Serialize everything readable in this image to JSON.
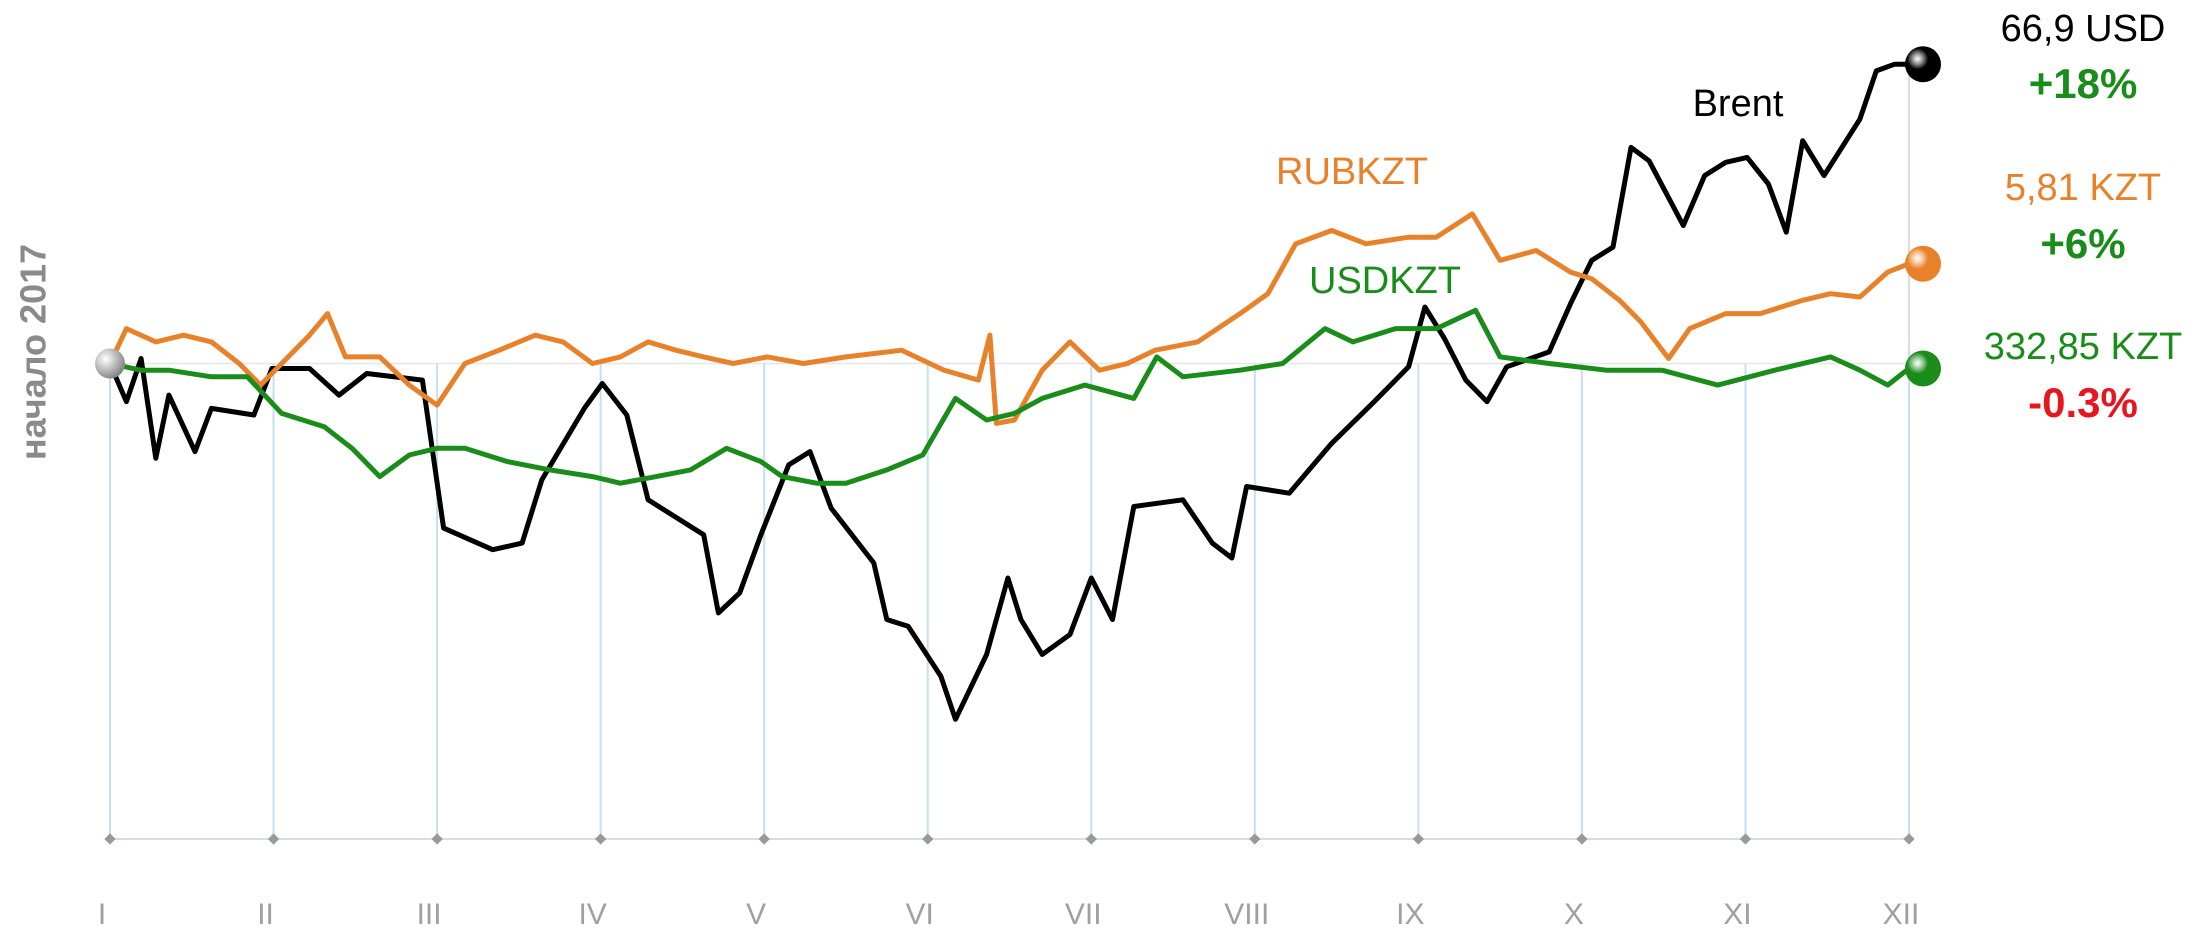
{
  "chart_data": {
    "type": "line",
    "ylabel": "начало 2017",
    "xlim": [
      0,
      11
    ],
    "ylim": [
      -28.6,
      20
    ],
    "xticks": [
      {
        "value": 0,
        "label": "I"
      },
      {
        "value": 1,
        "label": "II"
      },
      {
        "value": 2,
        "label": "III"
      },
      {
        "value": 3,
        "label": "IV"
      },
      {
        "value": 4,
        "label": "V"
      },
      {
        "value": 5,
        "label": "VI"
      },
      {
        "value": 6,
        "label": "VII"
      },
      {
        "value": 7,
        "label": "VIII"
      },
      {
        "value": 8,
        "label": "IX"
      },
      {
        "value": 9,
        "label": "X"
      },
      {
        "value": 10,
        "label": "XI"
      },
      {
        "value": 11,
        "label": "XII"
      }
    ],
    "grid": true,
    "series": [
      {
        "name": "Brent",
        "color": "#000000",
        "price_label": "66,9 USD",
        "change_label": "+18%",
        "change_color": "#1a8c1a",
        "x": [
          0,
          0.1,
          0.19,
          0.28,
          0.36,
          0.52,
          0.62,
          0.88,
          0.99,
          1.22,
          1.4,
          1.57,
          1.91,
          2.04,
          2.34,
          2.52,
          2.64,
          2.9,
          3.01,
          3.16,
          3.29,
          3.63,
          3.72,
          3.85,
          3.98,
          4.15,
          4.28,
          4.41,
          4.67,
          4.75,
          4.88,
          5.08,
          5.17,
          5.36,
          5.49,
          5.57,
          5.7,
          5.87,
          6.0,
          6.13,
          6.26,
          6.56,
          6.74,
          6.86,
          6.95,
          7.21,
          7.47,
          7.73,
          7.94,
          8.04,
          8.16,
          8.29,
          8.42,
          8.54,
          8.8,
          8.93,
          9.06,
          9.19,
          9.3,
          9.41,
          9.62,
          9.75,
          9.88,
          10.01,
          10.14,
          10.25,
          10.35,
          10.48,
          10.7,
          10.8,
          10.91,
          11.0
        ],
        "values": [
          0,
          -2.3,
          0.3,
          -5.7,
          -1.9,
          -5.3,
          -2.7,
          -3.1,
          -0.3,
          -0.3,
          -1.9,
          -0.6,
          -1.0,
          -9.9,
          -11.2,
          -10.8,
          -7.0,
          -2.7,
          -1.2,
          -3.1,
          -8.2,
          -10.3,
          -15.0,
          -13.8,
          -10.3,
          -6.1,
          -5.3,
          -8.7,
          -12.0,
          -15.4,
          -15.8,
          -18.8,
          -21.4,
          -17.5,
          -12.9,
          -15.4,
          -17.5,
          -16.3,
          -12.9,
          -15.4,
          -8.6,
          -8.2,
          -10.8,
          -11.7,
          -7.4,
          -7.8,
          -4.8,
          -2.3,
          -0.2,
          3.4,
          1.5,
          -1.0,
          -2.3,
          -0.2,
          0.7,
          3.6,
          6.2,
          7.0,
          13.0,
          12.2,
          8.3,
          11.3,
          12.1,
          12.4,
          10.8,
          7.9,
          13.4,
          11.3,
          14.7,
          17.6,
          18.0,
          18.0
        ]
      },
      {
        "name": "RUBKZT",
        "color": "#e8822a",
        "price_label": "5,81 KZT",
        "change_label": "+6%",
        "change_color": "#1a8c1a",
        "x": [
          0,
          0.1,
          0.28,
          0.45,
          0.62,
          0.79,
          0.92,
          1.05,
          1.22,
          1.33,
          1.44,
          1.65,
          1.83,
          2.0,
          2.17,
          2.38,
          2.6,
          2.77,
          2.95,
          3.12,
          3.29,
          3.46,
          3.63,
          3.81,
          4.02,
          4.24,
          4.5,
          4.84,
          5.1,
          5.31,
          5.38,
          5.42,
          5.53,
          5.7,
          5.87,
          6.05,
          6.22,
          6.39,
          6.65,
          6.91,
          7.08,
          7.25,
          7.47,
          7.68,
          7.94,
          8.11,
          8.33,
          8.5,
          8.72,
          8.93,
          9.06,
          9.23,
          9.36,
          9.53,
          9.66,
          9.88,
          10.09,
          10.35,
          10.52,
          10.7,
          10.87,
          11.0
        ],
        "values": [
          0,
          2.1,
          1.3,
          1.7,
          1.3,
          0.0,
          -1.3,
          0.0,
          1.7,
          3.0,
          0.4,
          0.4,
          -1.3,
          -2.5,
          0.0,
          0.8,
          1.7,
          1.3,
          0.0,
          0.4,
          1.3,
          0.8,
          0.4,
          0.0,
          0.4,
          0.0,
          0.4,
          0.8,
          -0.4,
          -1.0,
          1.7,
          -3.6,
          -3.4,
          -0.4,
          1.3,
          -0.4,
          0.0,
          0.8,
          1.3,
          3.0,
          4.2,
          7.2,
          8.0,
          7.2,
          7.6,
          7.6,
          9.0,
          6.2,
          6.8,
          5.5,
          5.1,
          3.8,
          2.5,
          0.3,
          2.1,
          3.0,
          3.0,
          3.8,
          4.2,
          4.0,
          5.5,
          6.0
        ]
      },
      {
        "name": "USDKZT",
        "color": "#1a8c1a",
        "price_label": "332,85 KZT",
        "change_label": "-0.3%",
        "change_color": "#e8141e",
        "x": [
          0,
          0.19,
          0.36,
          0.62,
          0.84,
          1.05,
          1.31,
          1.48,
          1.65,
          1.83,
          2.0,
          2.17,
          2.43,
          2.69,
          2.95,
          3.12,
          3.34,
          3.55,
          3.77,
          3.98,
          4.11,
          4.32,
          4.5,
          4.75,
          4.97,
          5.17,
          5.36,
          5.53,
          5.7,
          5.96,
          6.26,
          6.4,
          6.56,
          6.91,
          7.17,
          7.43,
          7.6,
          7.86,
          8.11,
          8.35,
          8.5,
          8.8,
          9.15,
          9.49,
          9.83,
          10.18,
          10.52,
          10.7,
          10.87,
          11.0
        ],
        "values": [
          0,
          -0.4,
          -0.4,
          -0.8,
          -0.8,
          -3.0,
          -3.8,
          -5.1,
          -6.8,
          -5.5,
          -5.1,
          -5.1,
          -5.9,
          -6.4,
          -6.8,
          -7.2,
          -6.8,
          -6.4,
          -5.1,
          -5.9,
          -6.8,
          -7.2,
          -7.2,
          -6.4,
          -5.5,
          -2.1,
          -3.4,
          -3.0,
          -2.1,
          -1.3,
          -2.1,
          0.4,
          -0.8,
          -0.4,
          0.0,
          2.1,
          1.3,
          2.1,
          2.1,
          3.2,
          0.4,
          0.0,
          -0.4,
          -0.4,
          -1.3,
          -0.4,
          0.4,
          -0.4,
          -1.3,
          -0.3
        ]
      }
    ]
  }
}
